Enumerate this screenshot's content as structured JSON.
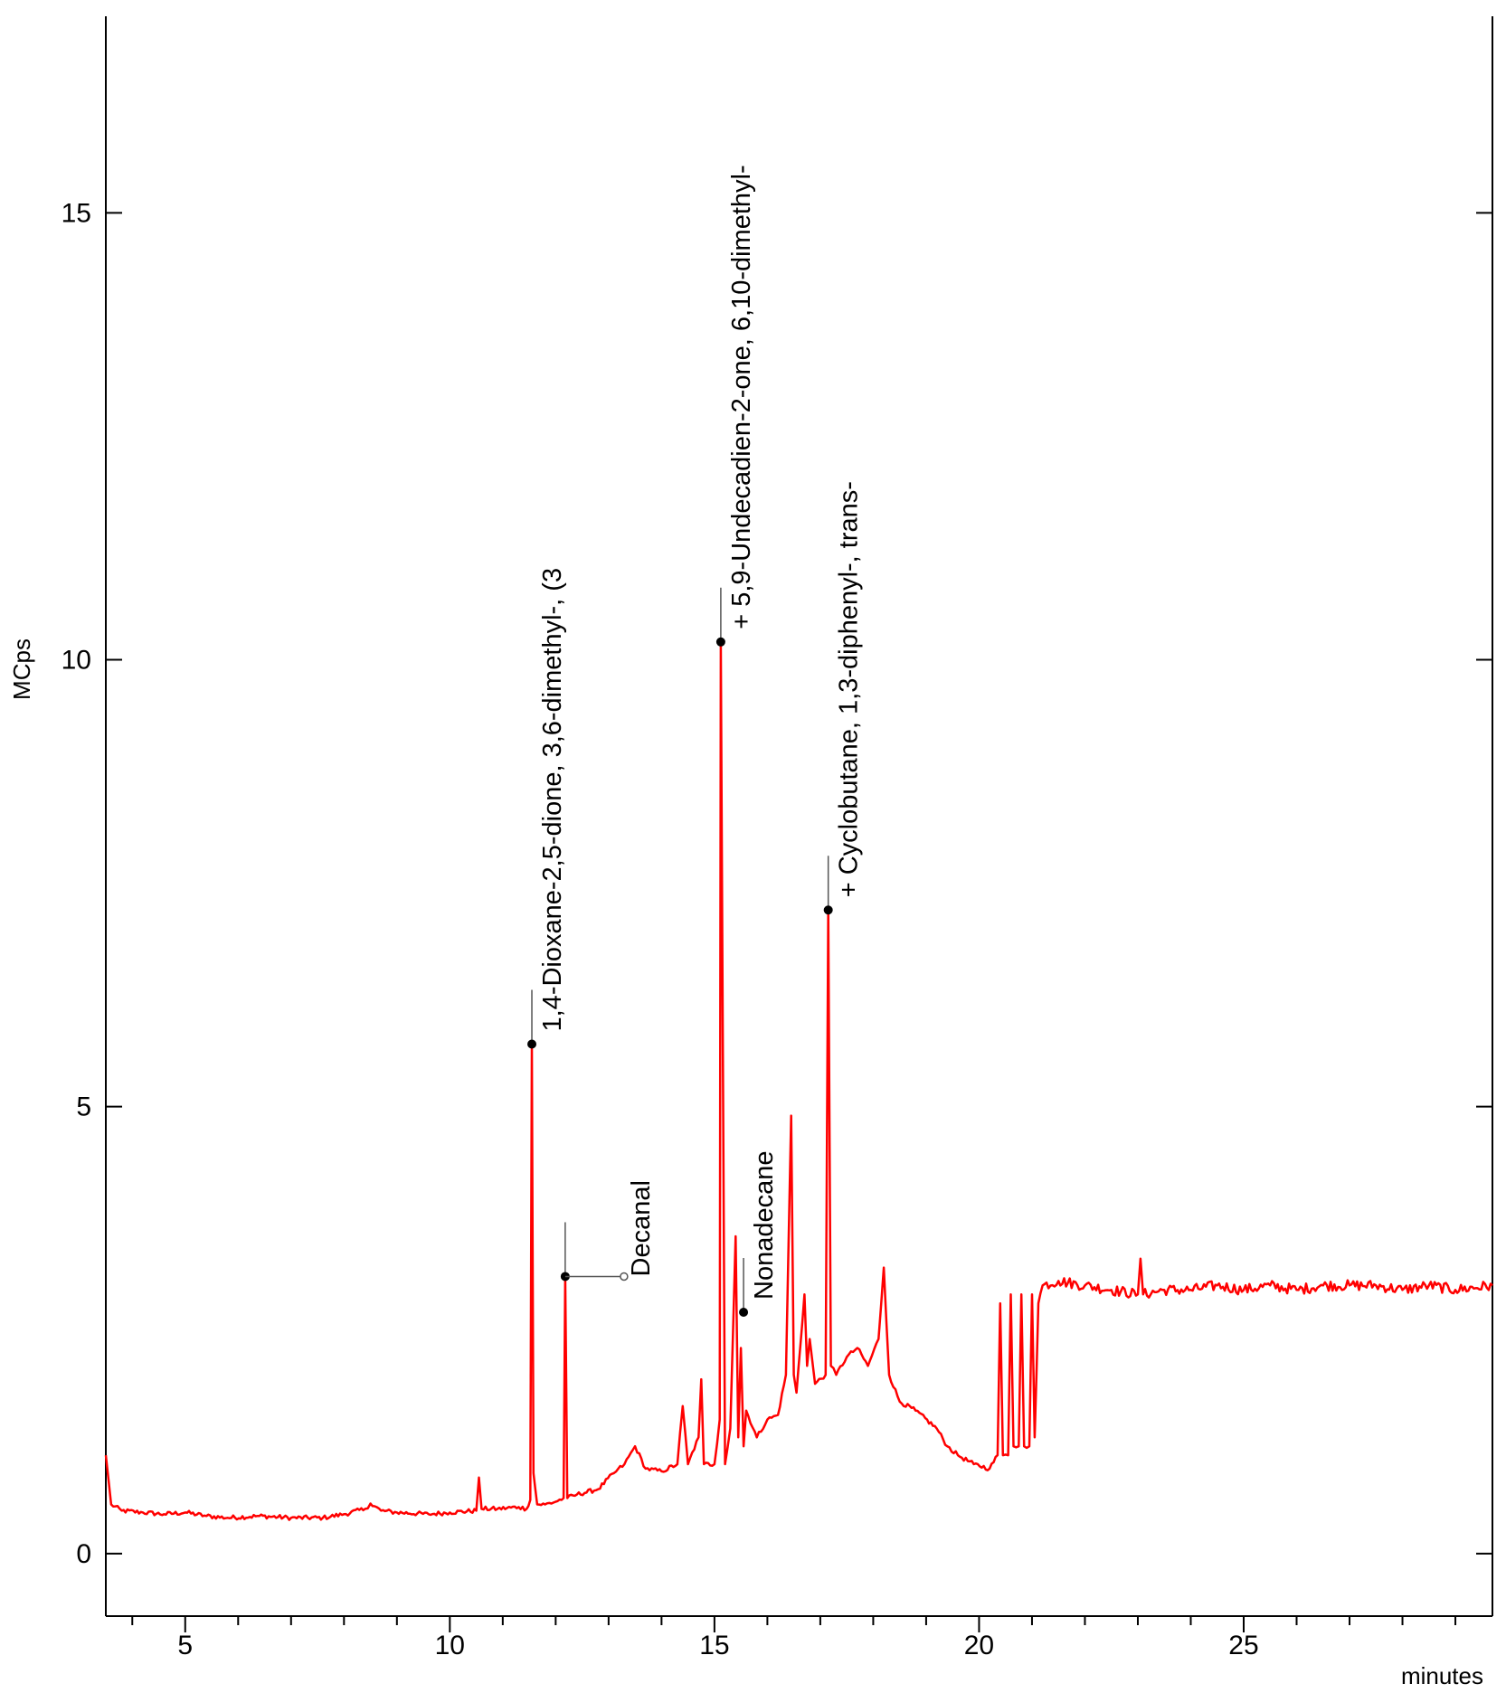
{
  "chart_data": {
    "type": "line",
    "title": "",
    "xlabel": "minutes",
    "ylabel": "MCps",
    "xlim": [
      3.5,
      29.7
    ],
    "ylim": [
      -0.7,
      17.2
    ],
    "x_ticks": [
      "5",
      "10",
      "15",
      "20",
      "25"
    ],
    "y_ticks": [
      "0",
      "5",
      "10",
      "15"
    ],
    "grid": false,
    "legend": "none",
    "colors": {
      "trace": "#ff0000",
      "axis": "#000000",
      "marker": "#000000",
      "annotation_line": "#555555"
    },
    "series": [
      {
        "x": [
          3.5,
          3.6,
          3.8,
          4.2,
          4.6,
          5.0,
          5.4,
          5.8,
          6.4,
          7.0,
          7.6,
          8.0,
          8.4,
          8.5,
          8.7,
          9.0,
          9.6,
          10.0,
          10.5,
          10.55,
          10.6,
          10.9,
          11.3,
          11.45,
          11.52,
          11.55,
          11.58,
          11.65,
          11.8,
          12.0,
          12.15,
          12.18,
          12.22,
          12.4,
          12.8,
          13.1,
          13.3,
          13.5,
          13.7,
          14.0,
          14.3,
          14.4,
          14.5,
          14.7,
          14.75,
          14.8,
          15.0,
          15.1,
          15.12,
          15.2,
          15.3,
          15.4,
          15.45,
          15.5,
          15.55,
          15.6,
          15.8,
          16.0,
          16.2,
          16.35,
          16.45,
          16.5,
          16.55,
          16.7,
          16.75,
          16.8,
          16.9,
          17.1,
          17.15,
          17.2,
          17.3,
          17.5,
          17.7,
          17.9,
          18.1,
          18.2,
          18.3,
          18.5,
          18.8,
          19.2,
          19.4,
          19.6,
          19.9,
          20.2,
          20.35,
          20.4,
          20.45,
          20.55,
          20.6,
          20.65,
          20.75,
          20.8,
          20.85,
          20.95,
          21.0,
          21.05,
          21.12,
          21.2,
          21.5,
          22.0,
          22.5,
          23.0,
          23.05,
          23.1,
          23.5,
          24.0,
          24.5,
          25.0,
          25.5,
          26.0,
          26.5,
          27.0,
          27.5,
          28.0,
          28.5,
          29.0,
          29.7
        ],
        "y": [
          1.1,
          0.55,
          0.48,
          0.46,
          0.44,
          0.46,
          0.42,
          0.4,
          0.42,
          0.4,
          0.4,
          0.44,
          0.5,
          0.56,
          0.48,
          0.46,
          0.44,
          0.46,
          0.48,
          0.85,
          0.5,
          0.5,
          0.52,
          0.5,
          0.6,
          5.7,
          0.9,
          0.55,
          0.55,
          0.58,
          0.62,
          3.1,
          0.62,
          0.66,
          0.72,
          0.9,
          1.0,
          1.2,
          0.95,
          0.92,
          1.0,
          1.65,
          1.0,
          1.3,
          1.95,
          1.0,
          1.0,
          1.5,
          10.2,
          1.0,
          1.4,
          3.55,
          1.3,
          2.3,
          1.2,
          1.6,
          1.3,
          1.5,
          1.55,
          2.0,
          4.9,
          2.0,
          1.8,
          2.9,
          2.1,
          2.4,
          1.9,
          2.0,
          7.2,
          2.1,
          2.0,
          2.2,
          2.3,
          2.1,
          2.4,
          3.2,
          2.0,
          1.7,
          1.6,
          1.4,
          1.2,
          1.1,
          1.0,
          0.95,
          1.1,
          2.8,
          1.1,
          1.1,
          2.9,
          1.2,
          1.2,
          2.9,
          1.2,
          1.2,
          2.9,
          1.3,
          2.8,
          3.0,
          3.05,
          3.0,
          2.95,
          2.9,
          3.3,
          2.9,
          2.95,
          2.95,
          3.0,
          2.95,
          3.0,
          2.95,
          3.0,
          3.0,
          3.0,
          2.95,
          3.0,
          2.95,
          3.0
        ]
      }
    ],
    "annotations": [
      {
        "label": "1,4-Dioxane-2,5-dione, 3,6-dimethyl-, (3",
        "x": 11.55,
        "y": 5.7
      },
      {
        "label": "Decanal",
        "x": 12.18,
        "y": 3.1
      },
      {
        "label": "+ 5,9-Undecadien-2-one, 6,10-dimethyl-",
        "x": 15.12,
        "y": 10.2
      },
      {
        "label": "Nonadecane",
        "x": 15.55,
        "y": 2.7
      },
      {
        "label": "+ Cyclobutane, 1,3-diphenyl-, trans-",
        "x": 17.15,
        "y": 7.2
      }
    ]
  }
}
